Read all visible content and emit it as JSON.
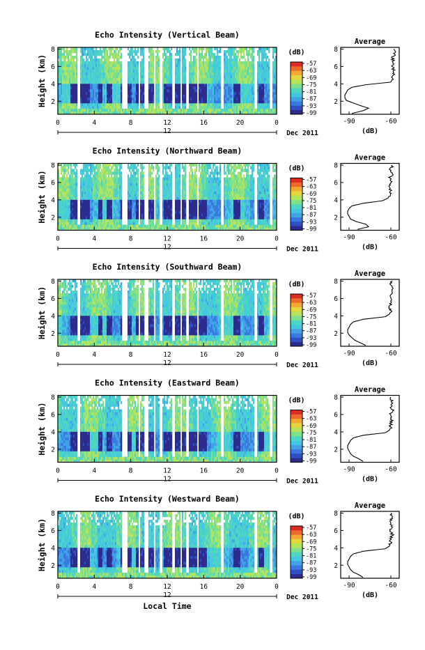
{
  "page": {
    "xlabel": "Local Time",
    "date_label": "Dec 2011"
  },
  "colorbar": {
    "unit": "(dB)",
    "ticks": [
      "-57",
      "-63",
      "-69",
      "-75",
      "-81",
      "-87",
      "-93",
      "-99"
    ],
    "colors": [
      "#2b2c8e",
      "#2f4fc4",
      "#3a7ae0",
      "#41a3e6",
      "#44c7e0",
      "#4fd6c2",
      "#7fe08a",
      "#b5e35e",
      "#e4d73c",
      "#f2a933",
      "#ee6a2c",
      "#dd2c22"
    ]
  },
  "chart_data": [
    {
      "type": "heatmap",
      "title": "Echo Intensity (Vertical Beam)",
      "ylabel": "Height (km)",
      "x_ticks": [
        "0",
        "4",
        "8",
        "12",
        "16",
        "20",
        "0"
      ],
      "x_secondary_label": "12",
      "xlim": [
        0,
        24
      ],
      "y_ticks": [
        "2",
        "4",
        "6",
        "8"
      ],
      "ylim": [
        0.5,
        8.2
      ],
      "low_echo_band_km": [
        1.9,
        4.0
      ],
      "average_profile": {
        "title": "Average",
        "xlabel": "(dB)",
        "x_ticks": [
          "-90",
          "-60"
        ],
        "xlim": [
          -96,
          -54
        ],
        "y_ticks": [
          "2",
          "4",
          "6",
          "8"
        ],
        "ylim": [
          0.5,
          8.2
        ],
        "height_km": [
          0.6,
          0.9,
          1.2,
          1.5,
          1.8,
          2.1,
          2.4,
          2.7,
          3.0,
          3.3,
          3.6,
          3.9,
          4.2,
          4.6,
          5.0,
          5.5,
          6.0,
          6.5,
          7.0,
          7.5,
          8.0
        ],
        "value_db": [
          -88,
          -80,
          -76,
          -82,
          -87,
          -92,
          -93,
          -93,
          -92,
          -91,
          -88,
          -78,
          -60,
          -59,
          -58,
          -58,
          -59,
          -58,
          -59,
          -57,
          -58
        ]
      }
    },
    {
      "type": "heatmap",
      "title": "Echo Intensity (Northward Beam)",
      "ylabel": "Height (km)",
      "x_ticks": [
        "0",
        "4",
        "8",
        "12",
        "16",
        "20",
        "0"
      ],
      "x_secondary_label": "12",
      "xlim": [
        0,
        24
      ],
      "y_ticks": [
        "2",
        "4",
        "6",
        "8"
      ],
      "ylim": [
        0.5,
        8.2
      ],
      "low_echo_band_km": [
        1.9,
        3.9
      ],
      "average_profile": {
        "title": "Average",
        "xlabel": "(dB)",
        "x_ticks": [
          "-90",
          "-60"
        ],
        "xlim": [
          -96,
          -54
        ],
        "y_ticks": [
          "2",
          "4",
          "6",
          "8"
        ],
        "ylim": [
          0.5,
          8.2
        ],
        "height_km": [
          0.6,
          0.9,
          1.2,
          1.5,
          1.8,
          2.1,
          2.4,
          2.7,
          3.0,
          3.3,
          3.6,
          3.9,
          4.2,
          4.6,
          5.0,
          5.5,
          6.0,
          6.5,
          7.0,
          7.5,
          8.0
        ],
        "value_db": [
          -84,
          -76,
          -78,
          -85,
          -89,
          -90,
          -91,
          -91,
          -90,
          -88,
          -80,
          -66,
          -62,
          -61,
          -60,
          -61,
          -60,
          -61,
          -59,
          -60,
          -59
        ]
      }
    },
    {
      "type": "heatmap",
      "title": "Echo Intensity (Southward Beam)",
      "ylabel": "Height (km)",
      "x_ticks": [
        "0",
        "4",
        "8",
        "12",
        "16",
        "20",
        "0"
      ],
      "x_secondary_label": "12",
      "xlim": [
        0,
        24
      ],
      "y_ticks": [
        "2",
        "4",
        "6",
        "8"
      ],
      "ylim": [
        0.5,
        8.2
      ],
      "low_echo_band_km": [
        1.9,
        3.9
      ],
      "average_profile": {
        "title": "Average",
        "xlabel": "(dB)",
        "x_ticks": [
          "-90",
          "-60"
        ],
        "xlim": [
          -96,
          -54
        ],
        "y_ticks": [
          "2",
          "4",
          "6",
          "8"
        ],
        "ylim": [
          0.5,
          8.2
        ],
        "height_km": [
          0.6,
          0.9,
          1.2,
          1.5,
          1.8,
          2.1,
          2.4,
          2.7,
          3.0,
          3.3,
          3.6,
          3.9,
          4.2,
          4.6,
          5.0,
          5.5,
          6.0,
          6.5,
          7.0,
          7.5,
          8.0
        ],
        "value_db": [
          -78,
          -82,
          -86,
          -88,
          -90,
          -91,
          -91,
          -90,
          -89,
          -87,
          -80,
          -64,
          -61,
          -60,
          -61,
          -60,
          -59,
          -60,
          -59,
          -60,
          -59
        ]
      }
    },
    {
      "type": "heatmap",
      "title": "Echo Intensity (Eastward Beam)",
      "ylabel": "Height (km)",
      "x_ticks": [
        "0",
        "4",
        "8",
        "12",
        "16",
        "20",
        "0"
      ],
      "x_secondary_label": "12",
      "xlim": [
        0,
        24
      ],
      "y_ticks": [
        "2",
        "4",
        "6",
        "8"
      ],
      "ylim": [
        0.5,
        8.2
      ],
      "low_echo_band_km": [
        1.9,
        3.9
      ],
      "average_profile": {
        "title": "Average",
        "xlabel": "(dB)",
        "x_ticks": [
          "-90",
          "-60"
        ],
        "xlim": [
          -96,
          -54
        ],
        "y_ticks": [
          "2",
          "4",
          "6",
          "8"
        ],
        "ylim": [
          0.5,
          8.2
        ],
        "height_km": [
          0.6,
          0.9,
          1.2,
          1.5,
          1.8,
          2.1,
          2.4,
          2.7,
          3.0,
          3.3,
          3.6,
          3.9,
          4.2,
          4.6,
          5.0,
          5.5,
          6.0,
          6.5,
          7.0,
          7.5,
          8.0
        ],
        "value_db": [
          -80,
          -83,
          -87,
          -89,
          -90,
          -91,
          -91,
          -90,
          -89,
          -87,
          -80,
          -64,
          -61,
          -60,
          -60,
          -59,
          -61,
          -59,
          -60,
          -59,
          -60
        ]
      }
    },
    {
      "type": "heatmap",
      "title": "Echo Intensity (Westward Beam)",
      "ylabel": "Height (km)",
      "x_ticks": [
        "0",
        "4",
        "8",
        "12",
        "16",
        "20",
        "0"
      ],
      "x_secondary_label": "12",
      "xlim": [
        0,
        24
      ],
      "y_ticks": [
        "2",
        "4",
        "6",
        "8"
      ],
      "ylim": [
        0.5,
        8.2
      ],
      "low_echo_band_km": [
        1.9,
        3.9
      ],
      "average_profile": {
        "title": "Average",
        "xlabel": "(dB)",
        "x_ticks": [
          "-90",
          "-60"
        ],
        "xlim": [
          -96,
          -54
        ],
        "y_ticks": [
          "2",
          "4",
          "6",
          "8"
        ],
        "ylim": [
          0.5,
          8.2
        ],
        "height_km": [
          0.6,
          0.9,
          1.2,
          1.5,
          1.8,
          2.1,
          2.4,
          2.7,
          3.0,
          3.3,
          3.6,
          3.9,
          4.2,
          4.6,
          5.0,
          5.5,
          6.0,
          6.5,
          7.0,
          7.5,
          8.0
        ],
        "value_db": [
          -80,
          -83,
          -87,
          -89,
          -90,
          -91,
          -91,
          -90,
          -89,
          -87,
          -80,
          -64,
          -61,
          -60,
          -60,
          -59,
          -61,
          -59,
          -60,
          -59,
          -60
        ]
      }
    }
  ]
}
